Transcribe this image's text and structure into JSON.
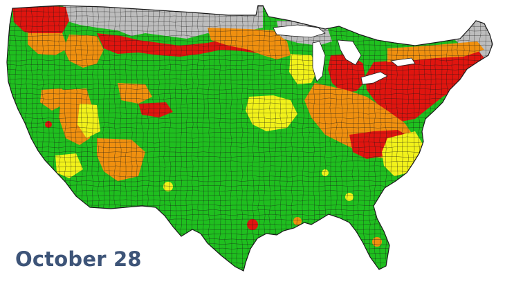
{
  "map": {
    "date_label": "October 28",
    "label_color": "#3d5478",
    "background_color": "#ffffff",
    "border_color": "#1a1a1a",
    "legend_colors": {
      "green": "#1fbf1f",
      "yellow": "#f2f21a",
      "orange": "#f0900f",
      "red": "#e0150f",
      "gray": "#bdbdbd"
    }
  }
}
